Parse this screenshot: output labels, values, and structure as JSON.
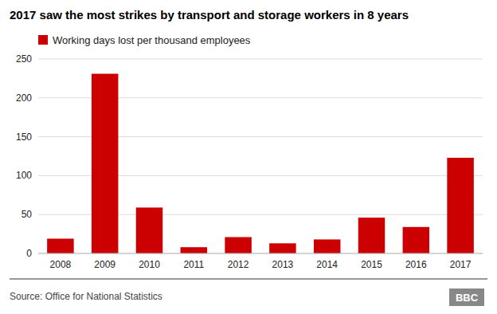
{
  "chart_data": {
    "type": "bar",
    "title": "2017 saw the most strikes by transport and storage workers in 8 years",
    "categories": [
      "2008",
      "2009",
      "2010",
      "2011",
      "2012",
      "2013",
      "2014",
      "2015",
      "2016",
      "2017"
    ],
    "series": [
      {
        "name": "Working days lost per thousand employees",
        "color": "#cc0000",
        "values": [
          19,
          231,
          59,
          8,
          21,
          13,
          18,
          46,
          34,
          123
        ]
      }
    ],
    "ylim": [
      0,
      250
    ],
    "yticks": [
      0,
      50,
      100,
      150,
      200,
      250
    ],
    "grid": true,
    "legend": "top-left",
    "annotations": [
      "Source: Office for National Statistics",
      "BBC"
    ]
  }
}
